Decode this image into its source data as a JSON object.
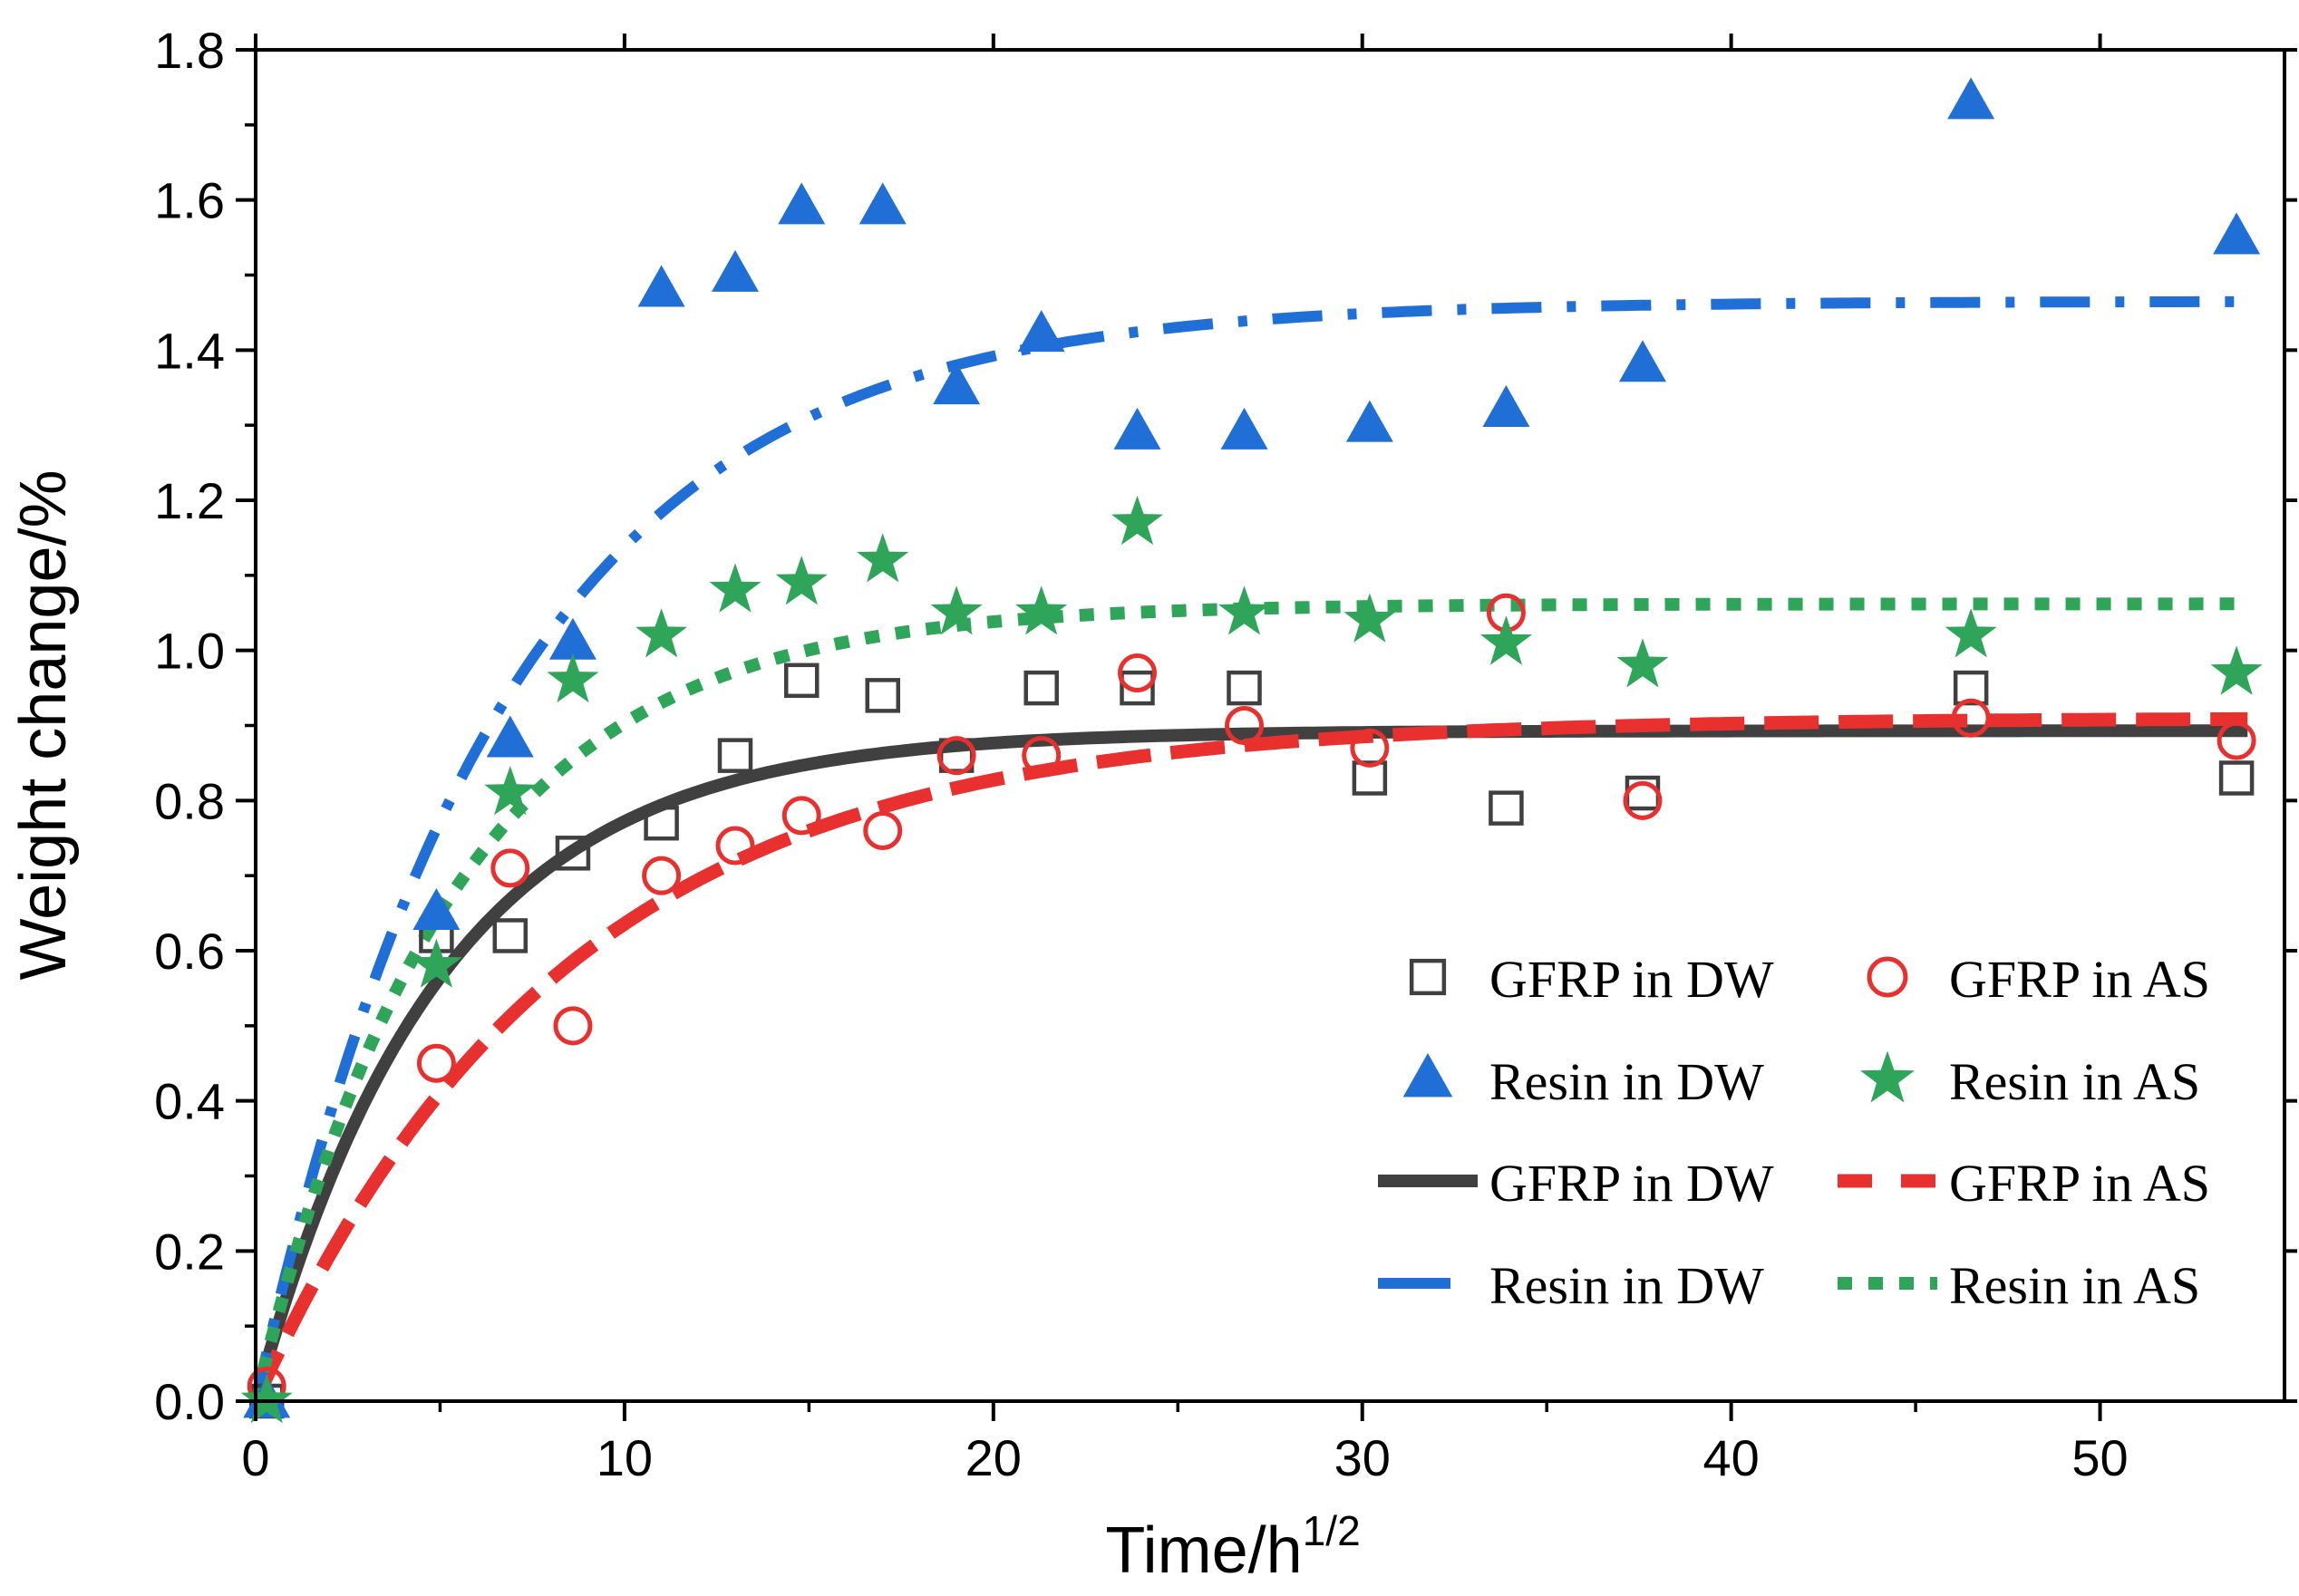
{
  "chart_data": {
    "type": "scatter",
    "xlabel": "Time/h",
    "xlabel_sup": "1/2",
    "ylabel": "Weight change/%",
    "xlim": [
      0,
      55
    ],
    "ylim": [
      0,
      1.8
    ],
    "x_ticks": [
      0,
      10,
      20,
      30,
      40,
      50
    ],
    "y_ticks": [
      0.0,
      0.2,
      0.4,
      0.6,
      0.8,
      1.0,
      1.2,
      1.4,
      1.6,
      1.8
    ],
    "x_tick_labels": [
      "0",
      "10",
      "20",
      "30",
      "40",
      "50"
    ],
    "y_tick_labels": [
      "0.0",
      "0.2",
      "0.4",
      "0.6",
      "0.8",
      "1.0",
      "1.2",
      "1.4",
      "1.6",
      "1.8"
    ],
    "grid": false,
    "legend_position": "bottom-right",
    "scatter_series": [
      {
        "name": "GFRP in DW",
        "marker": "square-open",
        "color": "#404040",
        "x": [
          0.3,
          4.9,
          6.9,
          8.6,
          11.0,
          13.0,
          14.8,
          17.0,
          19.0,
          21.3,
          23.9,
          26.8,
          30.2,
          33.9,
          37.6,
          46.5,
          53.7
        ],
        "y": [
          0.0,
          0.62,
          0.62,
          0.73,
          0.77,
          0.86,
          0.96,
          0.94,
          0.86,
          0.95,
          0.95,
          0.95,
          0.83,
          0.79,
          0.81,
          0.95,
          0.83
        ]
      },
      {
        "name": "GFRP in AS",
        "marker": "circle-open",
        "color": "#e8302f",
        "x": [
          0.3,
          4.9,
          6.9,
          8.6,
          11.0,
          13.0,
          14.8,
          17.0,
          19.0,
          21.3,
          23.9,
          26.8,
          30.2,
          33.9,
          37.6,
          46.5,
          53.7
        ],
        "y": [
          0.02,
          0.45,
          0.71,
          0.5,
          0.7,
          0.74,
          0.78,
          0.76,
          0.86,
          0.86,
          0.97,
          0.9,
          0.87,
          1.05,
          0.8,
          0.91,
          0.88
        ]
      },
      {
        "name": "Resin in DW",
        "marker": "triangle",
        "color": "#1f6fd6",
        "x": [
          0.3,
          4.9,
          6.9,
          8.6,
          11.0,
          13.0,
          14.8,
          17.0,
          19.0,
          21.3,
          23.9,
          26.8,
          30.2,
          33.9,
          37.6,
          46.5,
          53.7
        ],
        "y": [
          0.0,
          0.65,
          0.88,
          1.01,
          1.48,
          1.5,
          1.59,
          1.59,
          1.35,
          1.42,
          1.29,
          1.29,
          1.3,
          1.32,
          1.38,
          1.73,
          1.55
        ]
      },
      {
        "name": "Resin in AS",
        "marker": "star",
        "color": "#2fa55a",
        "x": [
          0.3,
          4.9,
          6.9,
          8.6,
          11.0,
          13.0,
          14.8,
          17.0,
          19.0,
          21.3,
          23.9,
          26.8,
          30.2,
          33.9,
          37.6,
          46.5,
          53.7
        ],
        "y": [
          0.0,
          0.58,
          0.81,
          0.96,
          1.02,
          1.08,
          1.09,
          1.12,
          1.05,
          1.05,
          1.17,
          1.05,
          1.04,
          1.01,
          0.98,
          1.02,
          0.97
        ]
      }
    ],
    "fit_series": [
      {
        "name": "GFRP in DW",
        "style": "solid",
        "color": "#404040",
        "plateau": 0.893,
        "rate": 0.2
      },
      {
        "name": "GFRP in AS",
        "style": "dash",
        "color": "#e8302f",
        "plateau": 0.91,
        "rate": 0.12
      },
      {
        "name": "Resin in DW",
        "style": "dashdot",
        "color": "#1f6fd6",
        "plateau": 1.465,
        "rate": 0.15
      },
      {
        "name": "Resin in AS",
        "style": "dot",
        "color": "#2fa55a",
        "plateau": 1.062,
        "rate": 0.19
      }
    ],
    "fit_x_range": [
      0,
      54
    ]
  }
}
